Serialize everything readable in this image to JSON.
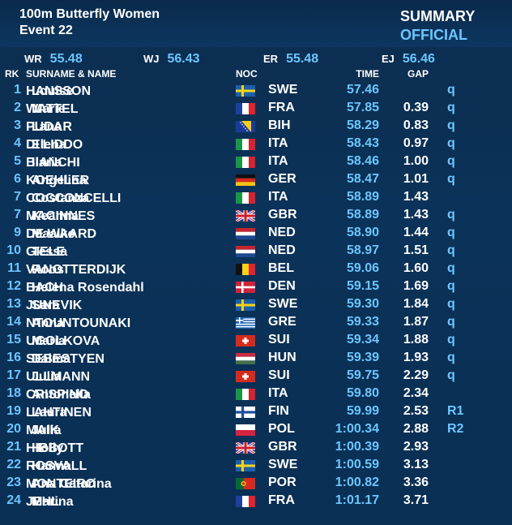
{
  "header": {
    "event_title": "100m Butterfly Women",
    "event_number": "Event 22",
    "summary_label": "SUMMARY",
    "status_label": "OFFICIAL"
  },
  "records": [
    {
      "label": "WR",
      "value": "55.48"
    },
    {
      "label": "WJ",
      "value": "56.43"
    },
    {
      "label": "ER",
      "value": "55.48"
    },
    {
      "label": "EJ",
      "value": "56.46"
    }
  ],
  "columns": {
    "rk": "RK",
    "name": "SURNAME & NAME",
    "noc": "NOC",
    "time": "TIME",
    "gap": "GAP"
  },
  "colors": {
    "accent": "#6cc6ff",
    "background": "#0b3258",
    "text": "#ffffff"
  },
  "results": [
    {
      "rk": "1",
      "surname": "HANSSON",
      "first": "Louise",
      "flag": "flag-sweden-icon",
      "noc": "SWE",
      "time": "57.46",
      "gap": "",
      "q": "q"
    },
    {
      "rk": "2",
      "surname": "WATTEL",
      "first": "Marie",
      "flag": "flag-france-icon",
      "noc": "FRA",
      "time": "57.85",
      "gap": "0.39",
      "q": "q"
    },
    {
      "rk": "3",
      "surname": "PUDAR",
      "first": "Lana",
      "flag": "flag-bosnia-icon",
      "noc": "BIH",
      "time": "58.29",
      "gap": "0.83",
      "q": "q"
    },
    {
      "rk": "4",
      "surname": "DI LIDDO",
      "first": "Elena",
      "flag": "flag-italy-icon",
      "noc": "ITA",
      "time": "58.43",
      "gap": "0.97",
      "q": "q"
    },
    {
      "rk": "5",
      "surname": "BIANCHI",
      "first": "Ilaria",
      "flag": "flag-italy-icon",
      "noc": "ITA",
      "time": "58.46",
      "gap": "1.00",
      "q": "q"
    },
    {
      "rk": "6",
      "surname": "KOEHLER",
      "first": "Angelina",
      "flag": "flag-germany-icon",
      "noc": "GER",
      "time": "58.47",
      "gap": "1.01",
      "q": "q"
    },
    {
      "rk": "7",
      "surname": "COCCONCELLI",
      "first": "Costanza",
      "flag": "flag-italy-icon",
      "noc": "ITA",
      "time": "58.89",
      "gap": "1.43",
      "q": ""
    },
    {
      "rk": "7",
      "surname": "MACINNES",
      "first": "Keanna",
      "flag": "flag-uk-icon",
      "noc": "GBR",
      "time": "58.89",
      "gap": "1.43",
      "q": "q"
    },
    {
      "rk": "9",
      "surname": "DE WAARD",
      "first": "Maaike",
      "flag": "flag-netherlands-icon",
      "noc": "NED",
      "time": "58.90",
      "gap": "1.44",
      "q": "q"
    },
    {
      "rk": "10",
      "surname": "GIELE",
      "first": "Tessa",
      "flag": "flag-netherlands-icon",
      "noc": "NED",
      "time": "58.97",
      "gap": "1.51",
      "q": "q"
    },
    {
      "rk": "11",
      "surname": "VANOTTERDIJK",
      "first": "Roos",
      "flag": "flag-belgium-icon",
      "noc": "BEL",
      "time": "59.06",
      "gap": "1.60",
      "q": "q"
    },
    {
      "rk": "12",
      "surname": "BACH",
      "first": "Helena Rosendahl",
      "flag": "flag-denmark-icon",
      "noc": "DEN",
      "time": "59.15",
      "gap": "1.69",
      "q": "q"
    },
    {
      "rk": "13",
      "surname": "JUNEVIK",
      "first": "Sara",
      "flag": "flag-sweden-icon",
      "noc": "SWE",
      "time": "59.30",
      "gap": "1.84",
      "q": "q"
    },
    {
      "rk": "14",
      "surname": "NTOUNTOUNAKI",
      "first": "Anna",
      "flag": "flag-greece-icon",
      "noc": "GRE",
      "time": "59.33",
      "gap": "1.87",
      "q": "q"
    },
    {
      "rk": "15",
      "surname": "UGOLKOVA",
      "first": "Maria",
      "flag": "flag-switzerland-icon",
      "noc": "SUI",
      "time": "59.34",
      "gap": "1.88",
      "q": "q"
    },
    {
      "rk": "16",
      "surname": "SEBESTYEN",
      "first": "Dalma",
      "flag": "flag-hungary-icon",
      "noc": "HUN",
      "time": "59.39",
      "gap": "1.93",
      "q": "q"
    },
    {
      "rk": "17",
      "surname": "ULLMANN",
      "first": "Julia",
      "flag": "flag-switzerland-icon",
      "noc": "SUI",
      "time": "59.75",
      "gap": "2.29",
      "q": "q"
    },
    {
      "rk": "18",
      "surname": "CRISPINO",
      "first": "Antonella",
      "flag": "flag-italy-icon",
      "noc": "ITA",
      "time": "59.80",
      "gap": "2.34",
      "q": ""
    },
    {
      "rk": "19",
      "surname": "LAHTINEN",
      "first": "Laura",
      "flag": "flag-finland-icon",
      "noc": "FIN",
      "time": "59.99",
      "gap": "2.53",
      "q": "R1"
    },
    {
      "rk": "20",
      "surname": "MAIK",
      "first": "Julia",
      "flag": "flag-poland-icon",
      "noc": "POL",
      "time": "1:00.34",
      "gap": "2.88",
      "q": "R2"
    },
    {
      "rk": "21",
      "surname": "HIBBOTT",
      "first": "Holly",
      "flag": "flag-uk-icon",
      "noc": "GBR",
      "time": "1:00.39",
      "gap": "2.93",
      "q": ""
    },
    {
      "rk": "22",
      "surname": "ROSVALL",
      "first": "Hanna",
      "flag": "flag-sweden-icon",
      "noc": "SWE",
      "time": "1:00.59",
      "gap": "3.13",
      "q": ""
    },
    {
      "rk": "23",
      "surname": "MONTEIRO",
      "first": "Ana Catarina",
      "flag": "flag-portugal-icon",
      "noc": "POR",
      "time": "1:00.82",
      "gap": "3.36",
      "q": ""
    },
    {
      "rk": "24",
      "surname": "JEHL",
      "first": "Marina",
      "flag": "flag-france-icon",
      "noc": "FRA",
      "time": "1:01.17",
      "gap": "3.71",
      "q": ""
    }
  ]
}
